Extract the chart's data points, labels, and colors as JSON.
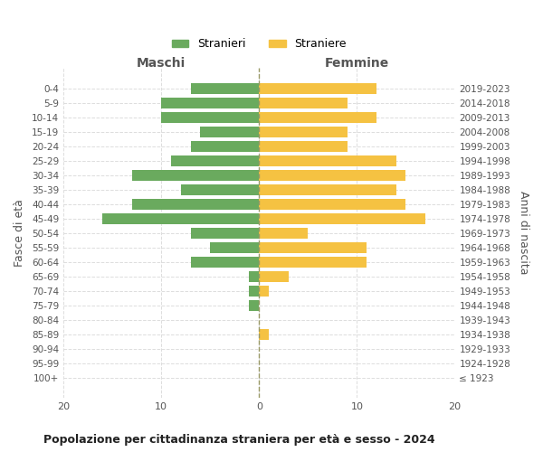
{
  "age_groups": [
    "100+",
    "95-99",
    "90-94",
    "85-89",
    "80-84",
    "75-79",
    "70-74",
    "65-69",
    "60-64",
    "55-59",
    "50-54",
    "45-49",
    "40-44",
    "35-39",
    "30-34",
    "25-29",
    "20-24",
    "15-19",
    "10-14",
    "5-9",
    "0-4"
  ],
  "birth_years": [
    "≤ 1923",
    "1924-1928",
    "1929-1933",
    "1934-1938",
    "1939-1943",
    "1944-1948",
    "1949-1953",
    "1954-1958",
    "1959-1963",
    "1964-1968",
    "1969-1973",
    "1974-1978",
    "1979-1983",
    "1984-1988",
    "1989-1993",
    "1994-1998",
    "1999-2003",
    "2004-2008",
    "2009-2013",
    "2014-2018",
    "2019-2023"
  ],
  "males": [
    0,
    0,
    0,
    0,
    0,
    1,
    1,
    1,
    7,
    5,
    7,
    16,
    13,
    8,
    13,
    9,
    7,
    6,
    10,
    10,
    7
  ],
  "females": [
    0,
    0,
    0,
    1,
    0,
    0,
    1,
    3,
    11,
    11,
    5,
    17,
    15,
    14,
    15,
    14,
    9,
    9,
    12,
    9,
    12
  ],
  "male_color": "#6aaa5e",
  "female_color": "#f5c242",
  "male_label": "Stranieri",
  "female_label": "Straniere",
  "title": "Popolazione per cittadinanza straniera per età e sesso - 2024",
  "xlabel_left": "Maschi",
  "xlabel_right": "Femmine",
  "ylabel_left": "Fasce di età",
  "ylabel_right": "Anni di nascita",
  "xlim": 20,
  "background_color": "#ffffff",
  "grid_color": "#dddddd",
  "tick_color": "#999999",
  "label_color": "#555555"
}
